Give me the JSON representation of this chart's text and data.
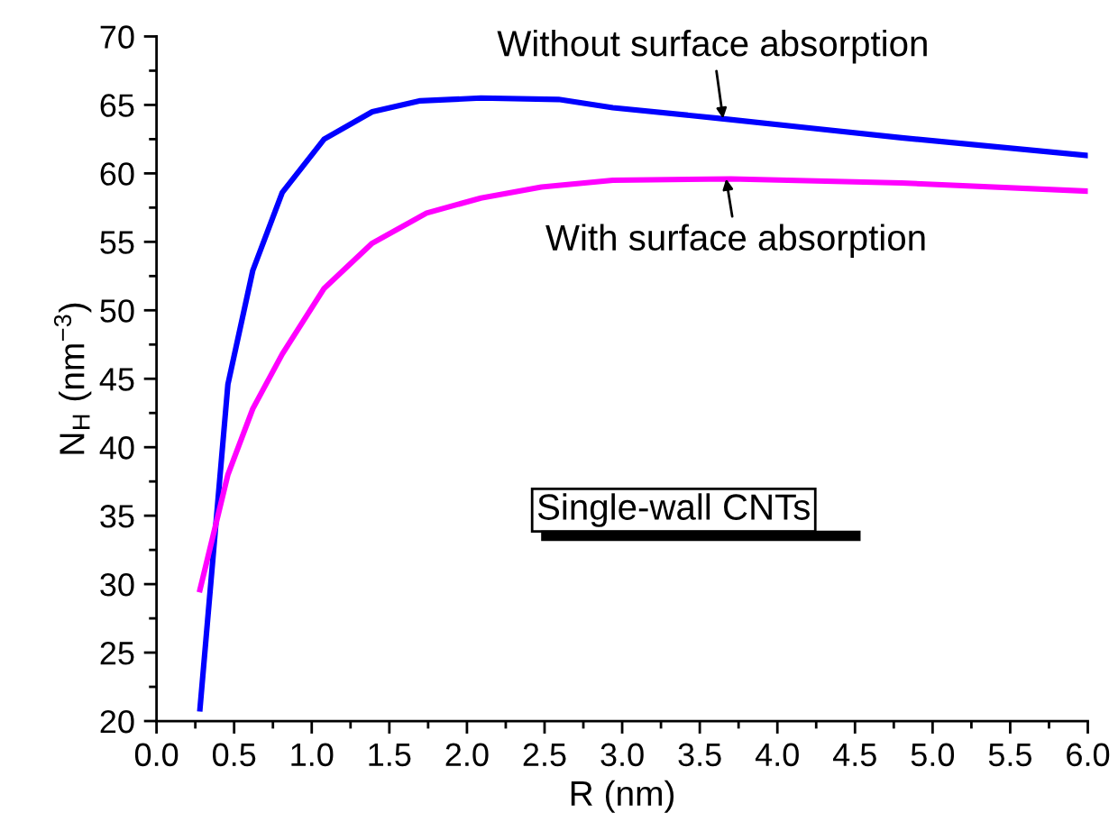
{
  "chart_data": {
    "type": "line",
    "xlabel": "R (nm)",
    "ylabel": "N$_{H}$ (nm$^{−3}$)",
    "xlim": [
      0,
      6
    ],
    "xticks": [
      {
        "value": 0,
        "label": "0.0"
      },
      {
        "value": 0.5,
        "label": "0.5"
      },
      {
        "value": 1,
        "label": "1.0"
      },
      {
        "value": 1.5,
        "label": "1.5"
      },
      {
        "value": 2,
        "label": "2.0"
      },
      {
        "value": 2.5,
        "label": "2.5"
      },
      {
        "value": 3,
        "label": "3.0"
      },
      {
        "value": 3.5,
        "label": "3.5"
      },
      {
        "value": 4,
        "label": "4.0"
      },
      {
        "value": 4.5,
        "label": "4.5"
      },
      {
        "value": 5,
        "label": "5.0"
      },
      {
        "value": 5.5,
        "label": "5.5"
      },
      {
        "value": 6,
        "label": "6.0"
      }
    ],
    "ylim": [
      20,
      70
    ],
    "yticks": [
      20,
      25,
      30,
      35,
      40,
      45,
      50,
      55,
      60,
      65,
      70
    ],
    "grid": false,
    "legend": false,
    "marker": "none",
    "line_style": "solid",
    "series": [
      {
        "color": "#0000ff",
        "x": [
          0.28,
          0.46,
          0.62,
          0.81,
          1.08,
          1.39,
          1.7,
          2.09,
          2.59,
          2.94,
          3.64,
          4.22,
          4.8,
          6.0
        ],
        "values": [
          20.9,
          44.6,
          52.9,
          58.6,
          62.5,
          64.5,
          65.3,
          65.5,
          65.4,
          64.8,
          64.0,
          63.3,
          62.6,
          61.3
        ]
      },
      {
        "color": "#ff00ff",
        "x": [
          0.28,
          0.46,
          0.62,
          0.81,
          1.08,
          1.39,
          1.74,
          2.09,
          2.48,
          2.94,
          3.7,
          4.8,
          6.0
        ],
        "values": [
          29.6,
          38.0,
          42.8,
          46.8,
          51.6,
          54.9,
          57.1,
          58.2,
          59.0,
          59.5,
          59.6,
          59.3,
          58.7
        ]
      }
    ],
    "annotations": [
      {
        "text": "Without surface absorption",
        "x": 3.65,
        "y": 64.0
      },
      {
        "text": "With surface absorption",
        "x": 3.67,
        "y": 59.6
      },
      "Single-wall CNTs"
    ]
  }
}
